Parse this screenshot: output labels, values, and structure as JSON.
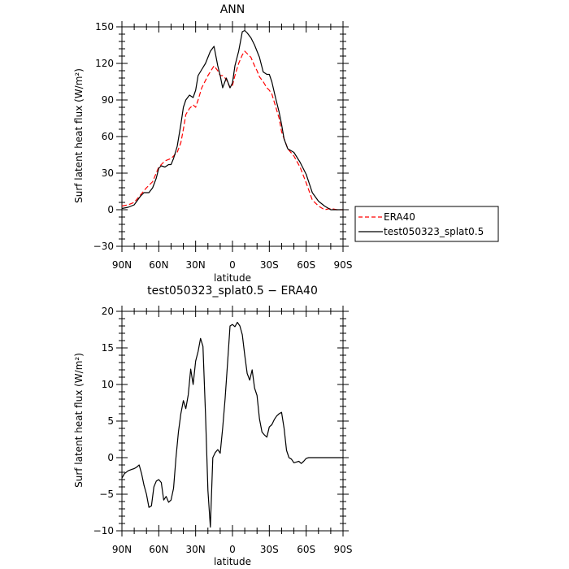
{
  "chart_data": [
    {
      "type": "line",
      "title": "ANN",
      "xlabel": "latitude",
      "ylabel": "Surf latent heat flux (W/m²)",
      "ylim": [
        -30,
        150
      ],
      "yticks": [
        -30,
        0,
        30,
        60,
        90,
        120,
        150
      ],
      "xlim": [
        90,
        -90
      ],
      "xticks": [
        90,
        60,
        30,
        0,
        -30,
        -60,
        -90
      ],
      "xtick_labels": [
        "90N",
        "60N",
        "30N",
        "0",
        "30S",
        "60S",
        "90S"
      ],
      "legend": "right",
      "series": [
        {
          "name": "ERA40",
          "color": "#ff0000",
          "dash": "dashed",
          "x": [
            90,
            85,
            80,
            75,
            70,
            65,
            60,
            55,
            50,
            45,
            42,
            40,
            38,
            35,
            32,
            30,
            28,
            25,
            20,
            15,
            12,
            10,
            8,
            5,
            2,
            0,
            -2,
            -5,
            -8,
            -10,
            -12,
            -15,
            -18,
            -20,
            -22,
            -25,
            -28,
            -30,
            -32,
            -35,
            -38,
            -40,
            -45,
            -50,
            -55,
            -60,
            -65,
            -70,
            -75,
            -80,
            -85,
            -90
          ],
          "y": [
            3,
            4,
            6,
            12,
            18,
            23,
            35,
            40,
            42,
            47,
            55,
            66,
            78,
            83,
            86,
            84,
            90,
            100,
            110,
            118,
            114,
            110,
            110,
            107,
            100,
            102,
            110,
            120,
            127,
            130,
            128,
            125,
            118,
            114,
            109,
            105,
            100,
            98,
            95,
            85,
            75,
            64,
            50,
            44,
            35,
            22,
            8,
            3,
            0,
            1,
            0,
            0
          ]
        },
        {
          "name": "test050323_splat0.5",
          "color": "#000000",
          "dash": "solid",
          "x": [
            90,
            85,
            80,
            75,
            72,
            70,
            68,
            65,
            62,
            60,
            58,
            55,
            52,
            50,
            48,
            45,
            42,
            40,
            38,
            35,
            32,
            30,
            28,
            25,
            22,
            20,
            18,
            15,
            12,
            10,
            8,
            5,
            2,
            0,
            -2,
            -5,
            -8,
            -10,
            -12,
            -15,
            -18,
            -20,
            -22,
            -25,
            -28,
            -30,
            -32,
            -35,
            -38,
            -40,
            -42,
            -45,
            -50,
            -55,
            -60,
            -65,
            -70,
            -75,
            -80,
            -85,
            -90
          ],
          "y": [
            1,
            2,
            4,
            11,
            14,
            14,
            14,
            18,
            26,
            34,
            36,
            35,
            37,
            37,
            42,
            52,
            70,
            84,
            90,
            94,
            92,
            98,
            110,
            115,
            120,
            125,
            130,
            134,
            118,
            110,
            100,
            108,
            100,
            104,
            118,
            130,
            146,
            147,
            145,
            141,
            135,
            130,
            125,
            113,
            111,
            111,
            105,
            92,
            80,
            70,
            58,
            50,
            47,
            39,
            29,
            14,
            7,
            3,
            0,
            0,
            0
          ]
        }
      ]
    },
    {
      "type": "line",
      "title": "test050323_splat0.5 − ERA40",
      "xlabel": "latitude",
      "ylabel": "Surf latent heat flux (W/m²)",
      "ylim": [
        -10,
        20
      ],
      "yticks": [
        -10,
        -5,
        0,
        5,
        10,
        15,
        20
      ],
      "xlim": [
        90,
        -90
      ],
      "xticks": [
        90,
        60,
        30,
        0,
        -30,
        -60,
        -90
      ],
      "xtick_labels": [
        "90N",
        "60N",
        "30N",
        "0",
        "30S",
        "60S",
        "90S"
      ],
      "series": [
        {
          "color": "#000000",
          "dash": "solid",
          "x": [
            90,
            88,
            85,
            82,
            80,
            78,
            76,
            74,
            72,
            70,
            68,
            66,
            64,
            62,
            60,
            58,
            56,
            54,
            52,
            50,
            48,
            46,
            44,
            42,
            40,
            38,
            36,
            34,
            32,
            30,
            28,
            26,
            24,
            22,
            20,
            18,
            16,
            14,
            12,
            10,
            8,
            6,
            4,
            2,
            0,
            -2,
            -4,
            -6,
            -8,
            -10,
            -12,
            -14,
            -16,
            -18,
            -20,
            -22,
            -24,
            -26,
            -28,
            -30,
            -32,
            -34,
            -36,
            -38,
            -40,
            -42,
            -44,
            -46,
            -48,
            -50,
            -52,
            -54,
            -56,
            -58,
            -60,
            -62,
            -64,
            -66,
            -68,
            -70,
            -72,
            -74,
            -76,
            -78,
            -80,
            -82,
            -84,
            -86,
            -88,
            -90
          ],
          "y": [
            -2.8,
            -2.2,
            -1.8,
            -1.6,
            -1.5,
            -1.3,
            -1.0,
            -2.2,
            -3.8,
            -5.0,
            -6.8,
            -6.6,
            -4.0,
            -3.2,
            -3.0,
            -3.4,
            -5.8,
            -5.3,
            -6.1,
            -5.8,
            -4.2,
            0.0,
            3.5,
            6.0,
            7.8,
            6.7,
            8.6,
            12.1,
            10.0,
            13.2,
            14.5,
            16.3,
            15.2,
            6.0,
            -4.5,
            -9.5,
            0.0,
            0.7,
            1.1,
            0.6,
            4.0,
            8.0,
            13.0,
            18.0,
            18.2,
            17.9,
            18.5,
            18.0,
            16.8,
            14.0,
            11.5,
            10.6,
            12.0,
            9.5,
            8.5,
            5.3,
            3.5,
            3.1,
            2.8,
            4.2,
            4.5,
            5.2,
            5.7,
            6.0,
            6.2,
            4.0,
            1.0,
            0.0,
            -0.2,
            -0.7,
            -0.6,
            -0.5,
            -0.8,
            -0.5,
            -0.1,
            0.0,
            0.0,
            0.0,
            0.0,
            0.0,
            0.0,
            0.0,
            0.0,
            0.0,
            0.0,
            0.0,
            0.0,
            0.0,
            0.0,
            0.0
          ]
        }
      ]
    }
  ]
}
